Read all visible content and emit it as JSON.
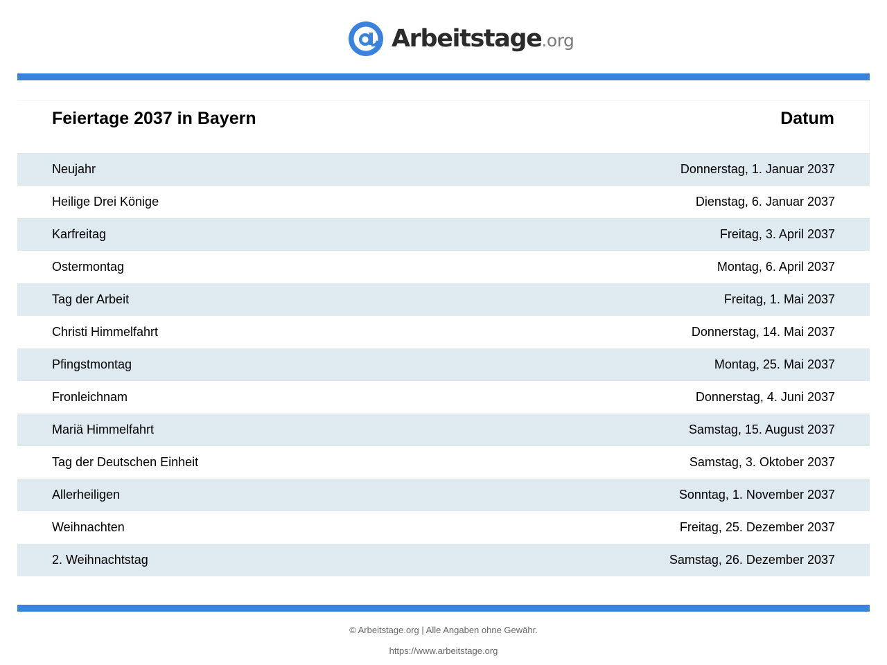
{
  "brand": {
    "name": "Arbeitstage",
    "tld": ".org",
    "accent_color": "#3b82dc",
    "logo_icon": "at-sign-icon"
  },
  "table": {
    "header": {
      "title": "Feiertage 2037 in Bayern",
      "date_column": "Datum"
    },
    "row_stripe_color": "#dfe9f0",
    "rows": [
      {
        "name": "Neujahr",
        "date": "Donnerstag, 1. Januar 2037"
      },
      {
        "name": "Heilige Drei Könige",
        "date": "Dienstag, 6. Januar 2037"
      },
      {
        "name": "Karfreitag",
        "date": "Freitag, 3. April 2037"
      },
      {
        "name": "Ostermontag",
        "date": "Montag, 6. April 2037"
      },
      {
        "name": "Tag der Arbeit",
        "date": "Freitag, 1. Mai 2037"
      },
      {
        "name": "Christi Himmelfahrt",
        "date": "Donnerstag, 14. Mai 2037"
      },
      {
        "name": "Pfingstmontag",
        "date": "Montag, 25. Mai 2037"
      },
      {
        "name": "Fronleichnam",
        "date": "Donnerstag, 4. Juni 2037"
      },
      {
        "name": "Mariä Himmelfahrt",
        "date": "Samstag, 15. August 2037"
      },
      {
        "name": "Tag der Deutschen Einheit",
        "date": "Samstag, 3. Oktober 2037"
      },
      {
        "name": "Allerheiligen",
        "date": "Sonntag, 1. November 2037"
      },
      {
        "name": "Weihnachten",
        "date": "Freitag, 25. Dezember 2037"
      },
      {
        "name": "2. Weihnachtstag",
        "date": "Samstag, 26. Dezember 2037"
      }
    ]
  },
  "footer": {
    "copyright": "© Arbeitstage.org | Alle Angaben ohne Gewähr.",
    "url": "https://www.arbeitstage.org"
  }
}
